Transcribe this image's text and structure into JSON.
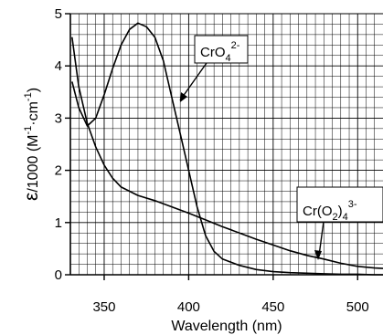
{
  "chart_data": {
    "type": "line",
    "xlabel": "Wavelength (nm)",
    "ylabel": {
      "symbol": "ε",
      "text": "/1000 (M",
      "sup1": "-1",
      "mid": "·cm",
      "sup2": "-1",
      "close": ")"
    },
    "xlim": [
      330,
      515
    ],
    "ylim": [
      0,
      5
    ],
    "x_ticks": [
      350,
      400,
      450,
      500
    ],
    "y_ticks": [
      0,
      1,
      2,
      3,
      4,
      5
    ],
    "grid": true,
    "series": [
      {
        "name": "CrO4 2-",
        "x": [
          331,
          335,
          340,
          345,
          350,
          355,
          360,
          365,
          370,
          375,
          380,
          385,
          390,
          395,
          400,
          405,
          410,
          415,
          420,
          430,
          440,
          450,
          460,
          470,
          480,
          490,
          500,
          510,
          515
        ],
        "y": [
          3.7,
          3.2,
          2.85,
          3.0,
          3.45,
          3.95,
          4.4,
          4.7,
          4.82,
          4.75,
          4.55,
          4.1,
          3.4,
          2.7,
          2.0,
          1.3,
          0.75,
          0.45,
          0.3,
          0.18,
          0.1,
          0.06,
          0.04,
          0.03,
          0.02,
          0.01,
          0.01,
          0.0,
          0.0
        ]
      },
      {
        "name": "Cr(O2)4 3-",
        "x": [
          331,
          335,
          340,
          345,
          350,
          355,
          360,
          370,
          380,
          390,
          400,
          410,
          420,
          430,
          440,
          450,
          460,
          470,
          480,
          490,
          500,
          510,
          515
        ],
        "y": [
          4.55,
          3.6,
          2.9,
          2.45,
          2.1,
          1.85,
          1.68,
          1.52,
          1.42,
          1.3,
          1.18,
          1.05,
          0.92,
          0.8,
          0.68,
          0.57,
          0.46,
          0.37,
          0.3,
          0.22,
          0.16,
          0.13,
          0.12
        ]
      }
    ],
    "annotations": [
      {
        "series": "CrO4 2-",
        "parts": {
          "base": "CrO",
          "sub": "4",
          "sup": "2-"
        },
        "points_to": [
          390,
          3.35
        ]
      },
      {
        "series": "Cr(O2)4 3-",
        "parts": {
          "base": "Cr(O",
          "sub1": "2",
          "mid": ")",
          "sub2": "4",
          "sup": "3-"
        },
        "points_to": [
          470,
          0.35
        ]
      }
    ]
  }
}
